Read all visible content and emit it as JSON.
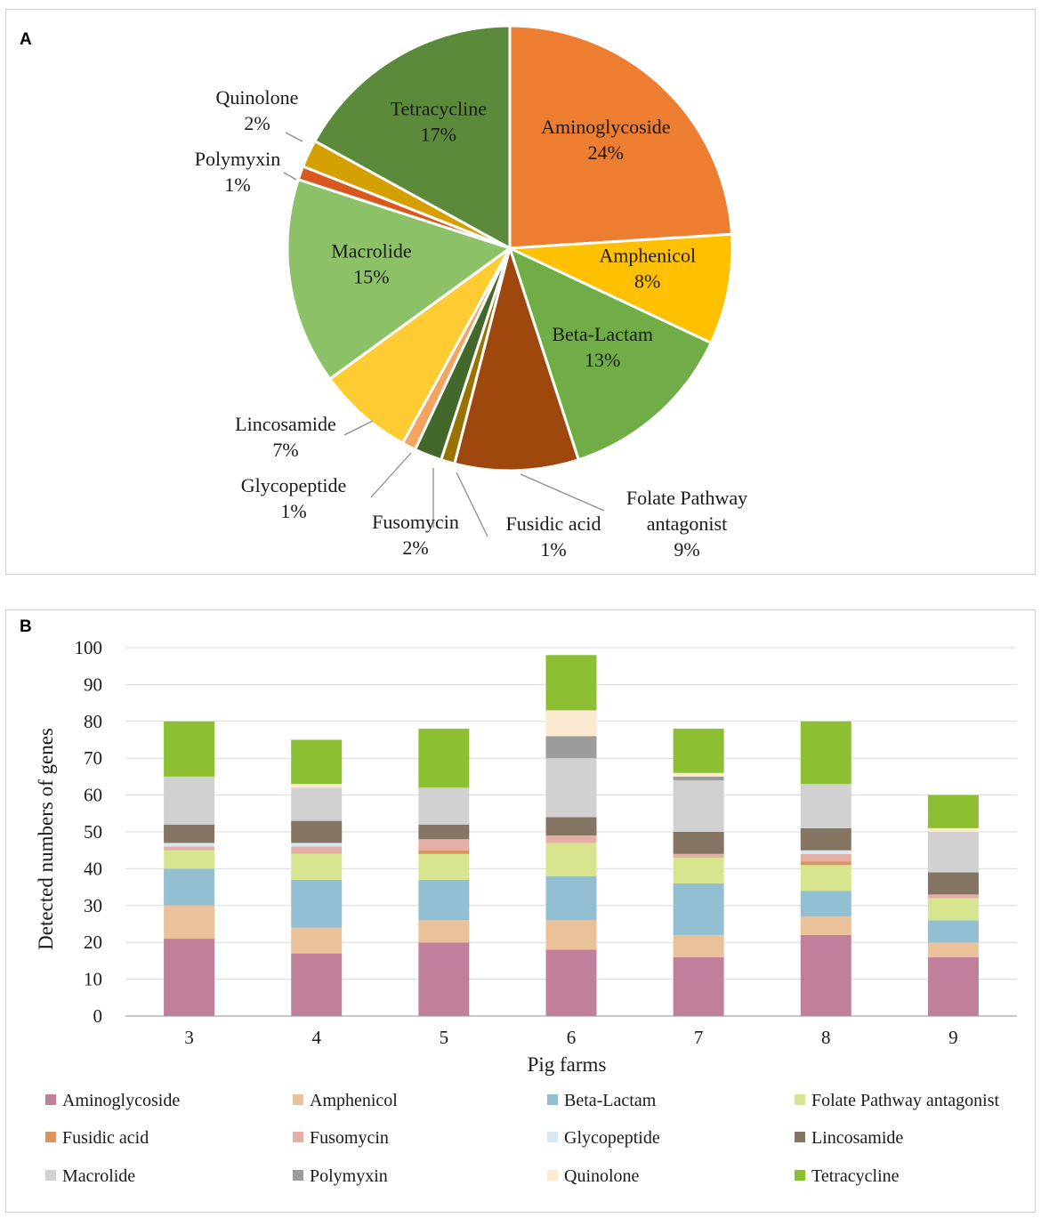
{
  "chart_data": [
    {
      "panel": "A",
      "type": "pie",
      "slices": [
        {
          "label": "Aminoglycoside",
          "pct_label": "24%",
          "value": 24,
          "color": "#ED7D31"
        },
        {
          "label": "Amphenicol",
          "pct_label": "8%",
          "value": 8,
          "color": "#FFC000"
        },
        {
          "label": "Beta-Lactam",
          "pct_label": "13%",
          "value": 13,
          "color": "#70AD47"
        },
        {
          "label": "Folate Pathway antagonist",
          "label_lines": [
            "Folate Pathway",
            "antagonist"
          ],
          "pct_label": "9%",
          "value": 9,
          "color": "#9E480E"
        },
        {
          "label": "Fusidic acid",
          "pct_label": "1%",
          "value": 1,
          "color": "#997300"
        },
        {
          "label": "Fusomycin",
          "pct_label": "2%",
          "value": 2,
          "color": "#43682B"
        },
        {
          "label": "Glycopeptide",
          "pct_label": "1%",
          "value": 1,
          "color": "#F4A460"
        },
        {
          "label": "Lincosamide",
          "pct_label": "7%",
          "value": 7,
          "color": "#FFCD33"
        },
        {
          "label": "Macrolide",
          "pct_label": "15%",
          "value": 15,
          "color": "#8CC168"
        },
        {
          "label": "Polymyxin",
          "pct_label": "1%",
          "value": 1,
          "color": "#D8581E"
        },
        {
          "label": "Quinolone",
          "pct_label": "2%",
          "value": 2,
          "color": "#D4A000"
        },
        {
          "label": "Tetracycline",
          "pct_label": "17%",
          "value": 17,
          "color": "#5A8A3A"
        }
      ]
    },
    {
      "panel": "B",
      "type": "bar",
      "stacked": true,
      "xlabel": "Pig farms",
      "ylabel": "Detected numbers of genes",
      "ylim": [
        0,
        100
      ],
      "yticks": [
        0,
        10,
        20,
        30,
        40,
        50,
        60,
        70,
        80,
        90,
        100
      ],
      "categories": [
        "3",
        "4",
        "5",
        "6",
        "7",
        "8",
        "9"
      ],
      "legend_position": "bottom",
      "series": [
        {
          "name": "Aminoglycoside",
          "color": "#C0809B",
          "values": [
            21,
            17,
            20,
            18,
            16,
            22,
            16
          ]
        },
        {
          "name": "Amphenicol",
          "color": "#EBC19A",
          "values": [
            9,
            7,
            6,
            8,
            6,
            5,
            4
          ]
        },
        {
          "name": "Beta-Lactam",
          "color": "#92BFD2",
          "values": [
            10,
            13,
            11,
            12,
            14,
            7,
            6
          ]
        },
        {
          "name": "Folate Pathway antagonist",
          "color": "#D7E68E",
          "values": [
            5,
            7,
            7,
            9,
            7,
            7,
            6
          ]
        },
        {
          "name": "Fusidic acid",
          "color": "#D9955E",
          "values": [
            0,
            0,
            1,
            0,
            0,
            1,
            0
          ]
        },
        {
          "name": "Fusomycin",
          "color": "#E6AFA5",
          "values": [
            1,
            2,
            3,
            2,
            1,
            2,
            1
          ]
        },
        {
          "name": "Glycopeptide",
          "color": "#D6E9F3",
          "values": [
            1,
            1,
            0,
            0,
            0,
            1,
            0
          ]
        },
        {
          "name": "Lincosamide",
          "color": "#857663",
          "values": [
            5,
            6,
            4,
            5,
            6,
            6,
            6
          ]
        },
        {
          "name": "Macrolide",
          "color": "#D1D1D1",
          "values": [
            13,
            9,
            10,
            16,
            14,
            12,
            11
          ]
        },
        {
          "name": "Polymyxin",
          "color": "#9C9C9C",
          "values": [
            0,
            0,
            0,
            6,
            1,
            0,
            0
          ]
        },
        {
          "name": "Quinolone",
          "color": "#FBE9D2",
          "values": [
            0,
            1,
            0,
            7,
            1,
            0,
            1
          ]
        },
        {
          "name": "Tetracycline",
          "color": "#8DBF33",
          "values": [
            15,
            12,
            16,
            15,
            12,
            17,
            9
          ]
        }
      ]
    }
  ],
  "panels": {
    "a_label": "A",
    "b_label": "B"
  }
}
